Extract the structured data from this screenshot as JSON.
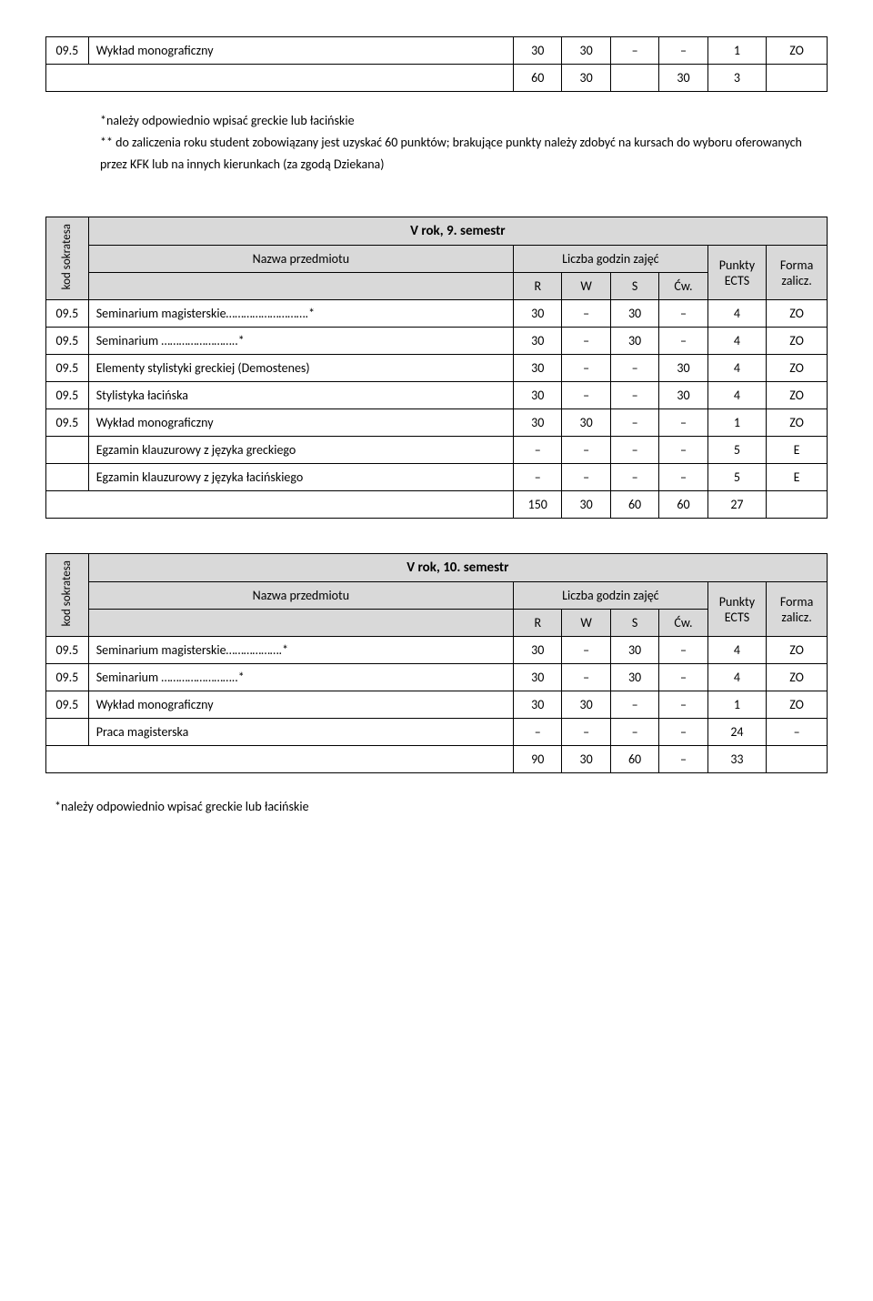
{
  "top_table": {
    "row": {
      "code": "09.5",
      "name": "Wykład monograficzny",
      "r": "30",
      "w": "30",
      "s": "–",
      "cw": "–",
      "ects": "1",
      "form": "ZO"
    },
    "sum": {
      "r": "60",
      "w": "30",
      "s": "",
      "cw": "30",
      "ects": "3",
      "form": ""
    }
  },
  "top_notes": {
    "line1": "*należy odpowiednio wpisać greckie lub łacińskie",
    "line2": "** do zaliczenia roku student zobowiązany jest uzyskać 60 punktów; brakujące punkty należy zdobyć na kursach do wyboru oferowanych przez KFK lub na innych kierunkach (za zgodą Dziekana)"
  },
  "header_labels": {
    "kod": "kod sokratesa",
    "nazwa": "Nazwa przedmiotu",
    "liczba": "Liczba godzin zajęć",
    "R": "R",
    "W": "W",
    "S": "S",
    "Cw": "Ćw.",
    "punkty": "Punkty ECTS",
    "forma": "Forma zalicz."
  },
  "sem9": {
    "title": "V rok, 9. semestr",
    "rows": [
      {
        "code": "09.5",
        "name": "Seminarium magisterskie……………………….*",
        "r": "30",
        "w": "–",
        "s": "30",
        "cw": "–",
        "ects": "4",
        "form": "ZO"
      },
      {
        "code": "09.5",
        "name": "Seminarium ……………………..*",
        "r": "30",
        "w": "–",
        "s": "30",
        "cw": "–",
        "ects": "4",
        "form": "ZO"
      },
      {
        "code": "09.5",
        "name": "Elementy stylistyki greckiej (Demostenes)",
        "r": "30",
        "w": "–",
        "s": "–",
        "cw": "30",
        "ects": "4",
        "form": "ZO"
      },
      {
        "code": "09.5",
        "name": "Stylistyka łacińska",
        "r": "30",
        "w": "–",
        "s": "–",
        "cw": "30",
        "ects": "4",
        "form": "ZO"
      },
      {
        "code": "09.5",
        "name": "Wykład monograficzny",
        "r": "30",
        "w": "30",
        "s": "–",
        "cw": "–",
        "ects": "1",
        "form": "ZO"
      },
      {
        "code": "",
        "name": "Egzamin klauzurowy z języka greckiego",
        "r": "–",
        "w": "–",
        "s": "–",
        "cw": "–",
        "ects": "5",
        "form": "E"
      },
      {
        "code": "",
        "name": "Egzamin klauzurowy z języka łacińskiego",
        "r": "–",
        "w": "–",
        "s": "–",
        "cw": "–",
        "ects": "5",
        "form": "E"
      }
    ],
    "sum": {
      "r": "150",
      "w": "30",
      "s": "60",
      "cw": "60",
      "ects": "27",
      "form": ""
    }
  },
  "sem10": {
    "title": "V rok, 10. semestr",
    "rows": [
      {
        "code": "09.5",
        "name": "Seminarium  magisterskie……………….*",
        "r": "30",
        "w": "–",
        "s": "30",
        "cw": "–",
        "ects": "4",
        "form": "ZO"
      },
      {
        "code": "09.5",
        "name": "Seminarium ……………………..*",
        "r": "30",
        "w": "–",
        "s": "30",
        "cw": "–",
        "ects": "4",
        "form": "ZO"
      },
      {
        "code": "09.5",
        "name": "Wykład monograficzny",
        "r": "30",
        "w": "30",
        "s": "–",
        "cw": "–",
        "ects": "1",
        "form": "ZO"
      },
      {
        "code": "",
        "name": "Praca magisterska",
        "r": "–",
        "w": "–",
        "s": "–",
        "cw": "–",
        "ects": "24",
        "form": "–"
      }
    ],
    "sum": {
      "r": "90",
      "w": "30",
      "s": "60",
      "cw": "–",
      "ects": "33",
      "form": ""
    }
  },
  "bottom_note": "*należy odpowiednio wpisać greckie lub łacińskie"
}
